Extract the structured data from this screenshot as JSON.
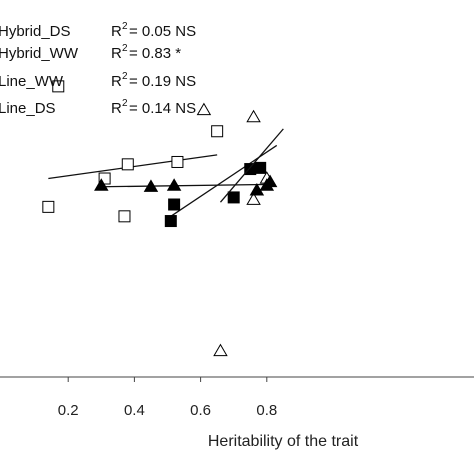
{
  "chart_data": {
    "type": "scatter",
    "title": "",
    "xlabel": "Heritability of the trait",
    "ylabel": "",
    "xlim": [
      0.0,
      0.82
    ],
    "ylim": [
      -0.35,
      1.0
    ],
    "xticks": [
      0.2,
      0.4,
      0.6,
      0.8
    ],
    "xtick_labels": [
      "0.2",
      "0.4",
      "0.6",
      "0.8"
    ],
    "grid": false,
    "legend": "top-left",
    "legend_entries": [
      {
        "series": "Hybrid_DS",
        "r2_label": "R",
        "r2_value": " = 0.05 NS"
      },
      {
        "series": "Hybrid_WW",
        "r2_label": "R",
        "r2_value": " = 0.83 *"
      },
      {
        "series": "Line_WW",
        "r2_label": "R",
        "r2_value": " = 0.19 NS"
      },
      {
        "series": "Line_DS",
        "r2_label": "R",
        "r2_value": " = 0.14 NS"
      }
    ],
    "series": [
      {
        "marker": "open-square",
        "color": "#000000",
        "points": [
          [
            0.14,
            0.37
          ],
          [
            0.17,
            0.88
          ],
          [
            0.31,
            0.49
          ],
          [
            0.38,
            0.55
          ],
          [
            0.37,
            0.33
          ],
          [
            0.53,
            0.56
          ],
          [
            0.65,
            0.69
          ]
        ],
        "trend": [
          [
            0.14,
            0.49
          ],
          [
            0.65,
            0.59
          ]
        ]
      },
      {
        "marker": "filled-square",
        "color": "#000000",
        "points": [
          [
            0.51,
            0.31
          ],
          [
            0.52,
            0.38
          ],
          [
            0.7,
            0.41
          ],
          [
            0.75,
            0.53
          ],
          [
            0.78,
            0.535
          ]
        ],
        "trend": [
          [
            0.51,
            0.33
          ],
          [
            0.83,
            0.63
          ]
        ]
      },
      {
        "marker": "open-triangle",
        "color": "#000000",
        "points": [
          [
            0.61,
            0.78
          ],
          [
            0.76,
            0.75
          ],
          [
            0.8,
            0.49
          ],
          [
            0.76,
            0.4
          ],
          [
            0.66,
            -0.24
          ]
        ],
        "trend": [
          [
            0.66,
            0.39
          ],
          [
            0.85,
            0.7
          ]
        ]
      },
      {
        "marker": "filled-triangle",
        "color": "#000000",
        "points": [
          [
            0.3,
            0.46
          ],
          [
            0.45,
            0.455
          ],
          [
            0.52,
            0.46
          ],
          [
            0.77,
            0.44
          ],
          [
            0.8,
            0.46
          ],
          [
            0.81,
            0.475
          ]
        ],
        "trend": [
          [
            0.3,
            0.455
          ],
          [
            0.81,
            0.465
          ]
        ]
      }
    ]
  }
}
